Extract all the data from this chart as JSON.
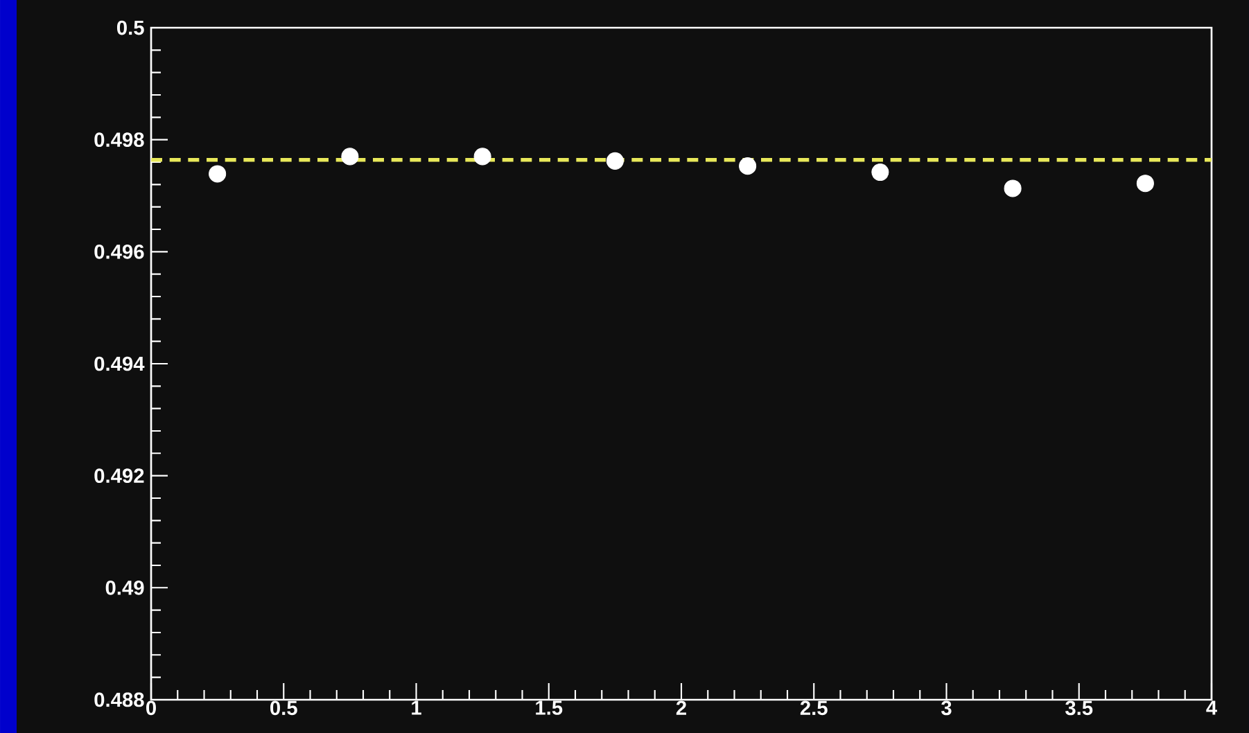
{
  "chart_data": {
    "type": "scatter",
    "x": [
      0.25,
      0.75,
      1.25,
      1.75,
      2.25,
      2.75,
      3.25,
      3.75
    ],
    "values": [
      0.49739,
      0.4977,
      0.4977,
      0.49762,
      0.49753,
      0.49742,
      0.49713,
      0.49722
    ],
    "color": "#ffffff",
    "marker": "circle",
    "xlim": [
      0,
      4
    ],
    "ylim": [
      0.488,
      0.5
    ],
    "xticks": [
      0,
      0.5,
      1,
      1.5,
      2,
      2.5,
      3,
      3.5,
      4
    ],
    "yticks": [
      0.488,
      0.49,
      0.492,
      0.494,
      0.496,
      0.498,
      0.5
    ],
    "ref_lines": [
      {
        "axis": "y",
        "value": 0.49764,
        "color": "#e8e85a",
        "line_style": "dashed"
      }
    ]
  }
}
